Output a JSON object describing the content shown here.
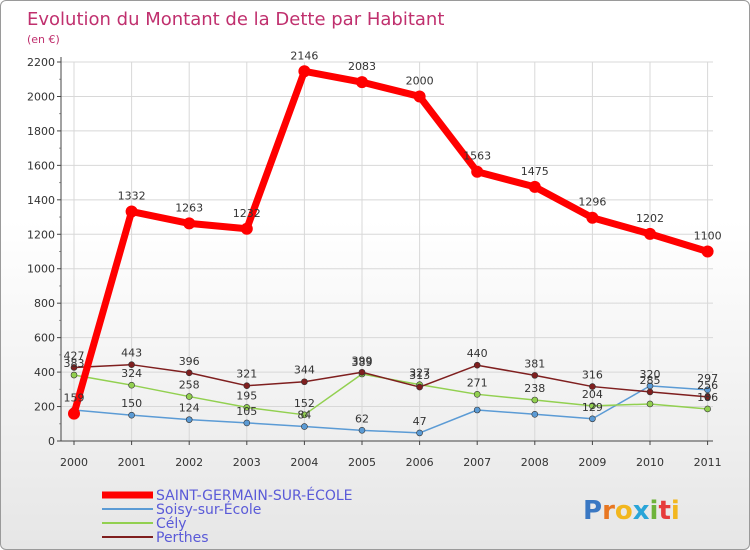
{
  "chart_data": {
    "type": "line",
    "title": "Evolution du Montant de la Dette par Habitant",
    "subtitle": "(en €)",
    "categories": [
      "2000",
      "2001",
      "2002",
      "2003",
      "2004",
      "2005",
      "2006",
      "2007",
      "2008",
      "2009",
      "2010",
      "2011"
    ],
    "ylim": [
      0,
      2200
    ],
    "yticks": [
      "0",
      "200",
      "400",
      "600",
      "800",
      "1000",
      "1200",
      "1400",
      "1600",
      "1800",
      "2000",
      "2200"
    ],
    "grid": true,
    "legend_position": "bottom-left",
    "series": [
      {
        "name": "Soisy-sur-École",
        "color": "#5b9bd5",
        "values": [
          180,
          150,
          124,
          105,
          84,
          62,
          47,
          180,
          155,
          129,
          320,
          297
        ]
      },
      {
        "name": "Cély",
        "color": "#92d050",
        "values": [
          383,
          324,
          258,
          195,
          152,
          389,
          327,
          271,
          238,
          204,
          215,
          186
        ]
      },
      {
        "name": "Perthes",
        "color": "#7f1f1f",
        "values": [
          427,
          443,
          396,
          321,
          344,
          399,
          313,
          440,
          381,
          316,
          285,
          256
        ]
      },
      {
        "name": "SAINT-GERMAIN-SUR-ÉCOLE",
        "color": "#ff0000",
        "values": [
          159,
          1332,
          1263,
          1232,
          2146,
          2083,
          2000,
          1563,
          1475,
          1296,
          1202,
          1100
        ]
      }
    ],
    "data_labels": {
      "Soisy-sur-École": [
        "",
        "150",
        "124",
        "105",
        "84",
        "62",
        "47",
        "",
        "",
        "129",
        "320",
        "297"
      ],
      "Cély": [
        "383",
        "324",
        "258",
        "195",
        "152",
        "389",
        "327",
        "271",
        "238",
        "204",
        "",
        "186"
      ],
      "Perthes": [
        "427",
        "443",
        "396",
        "321",
        "344",
        "399",
        "313",
        "440",
        "381",
        "316",
        "285",
        "256"
      ],
      "SAINT-GERMAIN-SUR-ÉCOLE": [
        "159",
        "1332",
        "1263",
        "1232",
        "2146",
        "2083",
        "2000",
        "1563",
        "1475",
        "1296",
        "1202",
        "1100"
      ]
    },
    "legend_order": [
      "SAINT-GERMAIN-SUR-ÉCOLE",
      "Soisy-sur-École",
      "Cély",
      "Perthes"
    ]
  },
  "logo": {
    "text": "Proxiti"
  },
  "colors": {
    "title": "#c0306e",
    "legend_text": "#5a5ad8",
    "axis": "#444444",
    "grid": "#d8d8d8"
  }
}
